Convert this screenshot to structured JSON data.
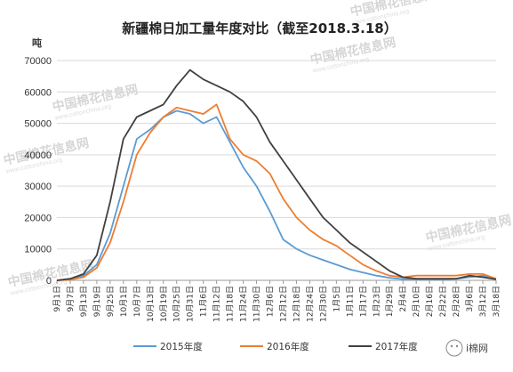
{
  "header": {
    "title": "新疆棉日加工量年度对比（截至2018.3.18）",
    "unit": "吨"
  },
  "watermark": {
    "text": "中国棉花信息网",
    "url": "www.cottonchina.org"
  },
  "brand": {
    "label": "i棉网"
  },
  "chart_data": {
    "type": "line",
    "title": "新疆棉日加工量年度对比（截至2018.3.18）",
    "ylabel": "吨",
    "xlabel": "",
    "ylim": [
      0,
      70000
    ],
    "yticks": [
      0,
      10000,
      20000,
      30000,
      40000,
      50000,
      60000,
      70000
    ],
    "x": [
      "9月1日",
      "9月7日",
      "9月13日",
      "9月19日",
      "9月25日",
      "10月1日",
      "10月7日",
      "10月13日",
      "10月19日",
      "10月25日",
      "10月31日",
      "11月6日",
      "11月12日",
      "11月18日",
      "11月24日",
      "11月30日",
      "12月6日",
      "12月12日",
      "12月18日",
      "12月24日",
      "12月30日",
      "1月5日",
      "1月11日",
      "1月17日",
      "1月23日",
      "1月29日",
      "2月4日",
      "2月10日",
      "2月16日",
      "2月22日",
      "2月28日",
      "3月6日",
      "3月12日",
      "3月18日"
    ],
    "grid": true,
    "legend_position": "bottom",
    "series": [
      {
        "name": "2015年度",
        "color": "#5b9bd5",
        "values": [
          0,
          200,
          1500,
          5000,
          15000,
          30000,
          45000,
          48000,
          52000,
          54000,
          53000,
          50000,
          52000,
          44000,
          36000,
          30000,
          22000,
          13000,
          10000,
          8000,
          6500,
          5000,
          3500,
          2500,
          1500,
          800,
          400,
          300,
          300,
          300,
          500,
          1000,
          1500,
          500
        ]
      },
      {
        "name": "2016年度",
        "color": "#ed7d31",
        "values": [
          0,
          200,
          1000,
          4000,
          12000,
          25000,
          40000,
          47000,
          52000,
          55000,
          54000,
          53000,
          56000,
          45000,
          40000,
          38000,
          34000,
          26000,
          20000,
          16000,
          13000,
          11000,
          8000,
          5000,
          3000,
          1500,
          1000,
          1500,
          1500,
          1500,
          1500,
          2000,
          2000,
          500
        ]
      },
      {
        "name": "2017年度",
        "color": "#404040",
        "values": [
          0,
          500,
          2000,
          8000,
          25000,
          45000,
          52000,
          54000,
          56000,
          62000,
          67000,
          64000,
          62000,
          60000,
          57000,
          52000,
          44000,
          38000,
          32000,
          26000,
          20000,
          16000,
          12000,
          9000,
          6000,
          3000,
          1000,
          500,
          500,
          500,
          500,
          1500,
          1000,
          300
        ]
      }
    ]
  }
}
